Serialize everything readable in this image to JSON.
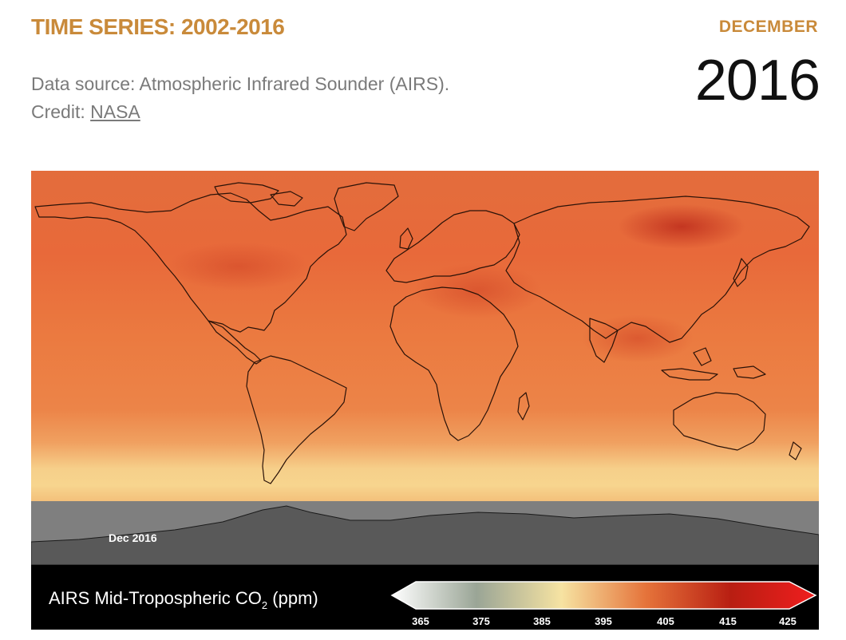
{
  "header": {
    "title": "TIME SERIES: 2002-2016",
    "month": "DECEMBER",
    "year": "2016"
  },
  "source": {
    "text": "Data source: Atmospheric Infrared Sounder (AIRS).",
    "credit_label": "Credit: ",
    "credit_link": "NASA"
  },
  "map": {
    "date_stamp": "Dec  2016",
    "legend_title": "AIRS Mid-Tropospheric CO",
    "legend_subscript": "2",
    "legend_unit": " (ppm)",
    "scale_ticks": [
      "365",
      "375",
      "385",
      "395",
      "405",
      "415",
      "425"
    ],
    "scale_colors": [
      "#ffffff",
      "#9aa596",
      "#f6e3a2",
      "#e5733a",
      "#b81e12",
      "#f01e1e"
    ]
  }
}
